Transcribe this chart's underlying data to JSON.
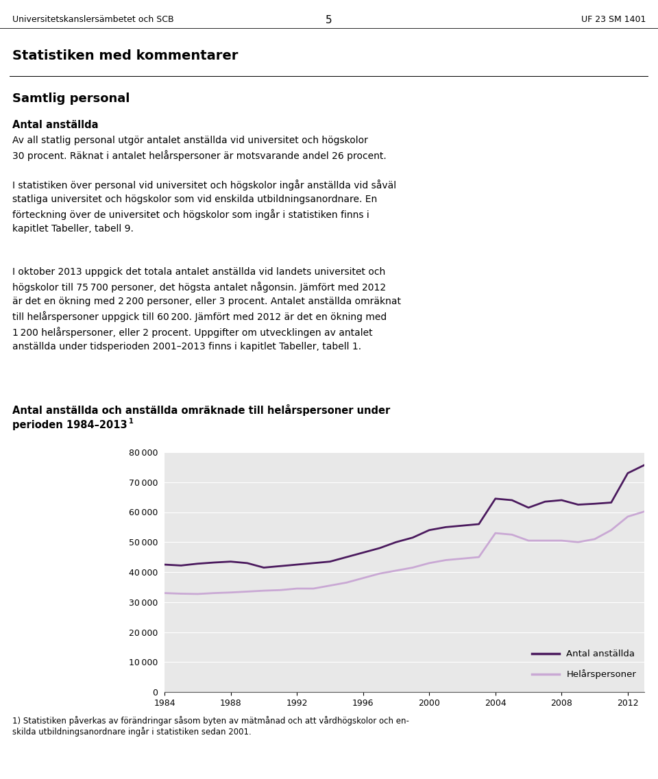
{
  "header_left": "Universitetskanslersämbetet och SCB",
  "header_center": "5",
  "header_right": "UF 23 SM 1401",
  "section_title": "Statistiken med kommentarer",
  "subsection_title": "Samtlig personal",
  "chart_title_line1": "Antal anställda och anställda omräknade till helårspersoner under",
  "chart_title_line2": "perioden 1984–2013",
  "chart_title_superscript": "1",
  "footnote_line1": "1) Statistiken påverkas av förändringar såsom byten av mätmånad och att vårdhögskolor och en-",
  "footnote_line2": "skilda utbildningsanordnare ingår i statistiken sedan 2001.",
  "years": [
    1984,
    1985,
    1986,
    1987,
    1988,
    1989,
    1990,
    1991,
    1992,
    1993,
    1994,
    1995,
    1996,
    1997,
    1998,
    1999,
    2000,
    2001,
    2002,
    2003,
    2004,
    2005,
    2006,
    2007,
    2008,
    2009,
    2010,
    2011,
    2012,
    2013
  ],
  "antal_anstallda": [
    42500,
    42200,
    42800,
    43200,
    43500,
    43000,
    41500,
    42000,
    42500,
    43000,
    43500,
    45000,
    46500,
    48000,
    50000,
    51500,
    54000,
    55000,
    55500,
    56000,
    64500,
    64000,
    61500,
    63500,
    64000,
    62500,
    62800,
    63200,
    73000,
    75700
  ],
  "helarspersoner": [
    33000,
    32800,
    32700,
    33000,
    33200,
    33500,
    33800,
    34000,
    34500,
    34500,
    35500,
    36500,
    38000,
    39500,
    40500,
    41500,
    43000,
    44000,
    44500,
    45000,
    53000,
    52500,
    50500,
    50500,
    50500,
    50000,
    51000,
    54000,
    58500,
    60200
  ],
  "line1_color": "#4b1a5e",
  "line2_color": "#c9a8d4",
  "plot_bg_color": "#e8e8e8",
  "ylim": [
    0,
    80000
  ],
  "yticks": [
    0,
    10000,
    20000,
    30000,
    40000,
    50000,
    60000,
    70000,
    80000
  ],
  "xticks": [
    1984,
    1988,
    1992,
    1996,
    2000,
    2004,
    2008,
    2012
  ],
  "legend_labels": [
    "Antal anställda",
    "Helårspersoner"
  ],
  "grid_color": "#ffffff"
}
